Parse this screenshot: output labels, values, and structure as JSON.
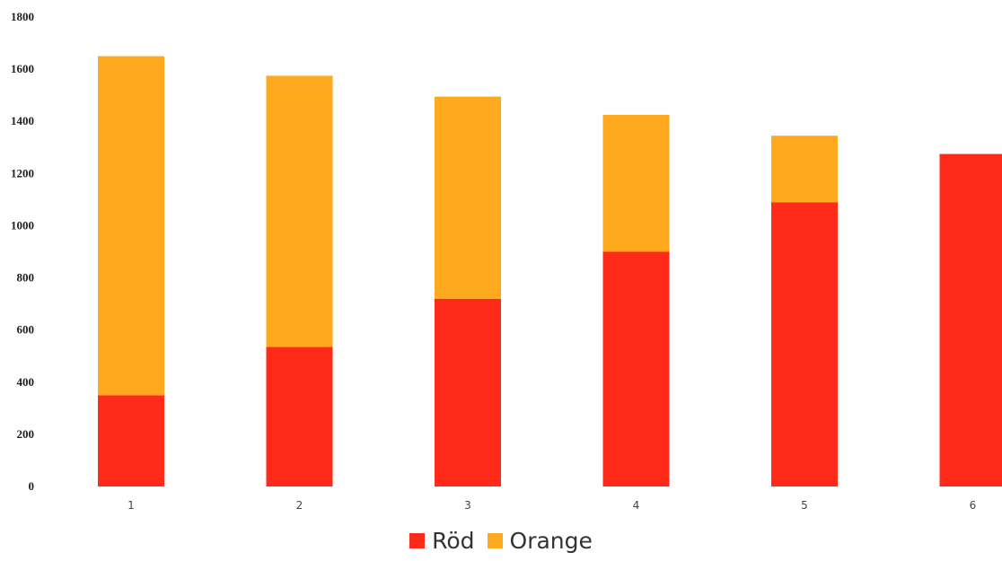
{
  "chart_data": {
    "type": "bar",
    "stacked": true,
    "title": "",
    "xlabel": "",
    "ylabel": "",
    "categories": [
      "1",
      "2",
      "3",
      "4",
      "5",
      "6"
    ],
    "series": [
      {
        "name": "Röd",
        "color": "#ff2a1a",
        "values": [
          350,
          535,
          720,
          900,
          1090,
          1275
        ]
      },
      {
        "name": "Orange",
        "color": "#ffaa1e",
        "values": [
          1300,
          1040,
          775,
          525,
          255,
          0
        ]
      }
    ],
    "ylim": [
      0,
      1800
    ],
    "yticks": [
      0,
      200,
      400,
      600,
      800,
      1000,
      1200,
      1400,
      1600,
      1800
    ],
    "grid": false,
    "legend_position": "bottom"
  }
}
